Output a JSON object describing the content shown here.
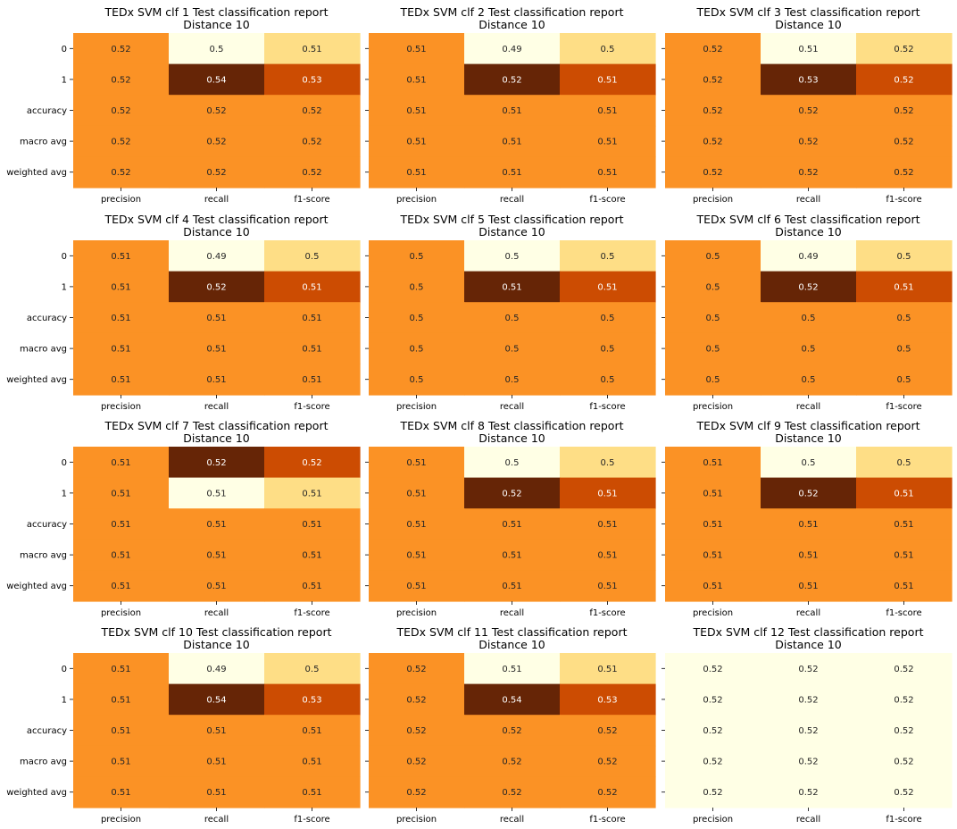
{
  "chart_data": [
    {
      "type": "heatmap",
      "title": "TEDx SVM clf 1 Test classification report",
      "subtitle": "Distance 10",
      "rows": [
        "0",
        "1",
        "accuracy",
        "macro avg",
        "weighted avg"
      ],
      "columns": [
        "precision",
        "recall",
        "f1-score"
      ],
      "values": [
        [
          0.52,
          0.5,
          0.51
        ],
        [
          0.52,
          0.54,
          0.53
        ],
        [
          0.52,
          0.52,
          0.52
        ],
        [
          0.52,
          0.52,
          0.52
        ],
        [
          0.52,
          0.52,
          0.52
        ]
      ],
      "colors": [
        [
          "#fb9225",
          "#ffffe5",
          "#fede86"
        ],
        [
          "#fb9225",
          "#662506",
          "#cc4c02"
        ],
        [
          "#fb9225",
          "#fb9225",
          "#fb9225"
        ],
        [
          "#fb9225",
          "#fb9225",
          "#fb9225"
        ],
        [
          "#fb9225",
          "#fb9225",
          "#fb9225"
        ]
      ]
    },
    {
      "type": "heatmap",
      "title": "TEDx SVM clf 2 Test classification report",
      "subtitle": "Distance 10",
      "rows": [
        "0",
        "1",
        "accuracy",
        "macro avg",
        "weighted avg"
      ],
      "columns": [
        "precision",
        "recall",
        "f1-score"
      ],
      "values": [
        [
          0.51,
          0.49,
          0.5
        ],
        [
          0.51,
          0.52,
          0.51
        ],
        [
          0.51,
          0.51,
          0.51
        ],
        [
          0.51,
          0.51,
          0.51
        ],
        [
          0.51,
          0.51,
          0.51
        ]
      ],
      "colors": [
        [
          "#fb9225",
          "#ffffe5",
          "#fede86"
        ],
        [
          "#fb9225",
          "#662506",
          "#cc4c02"
        ],
        [
          "#fb9225",
          "#fb9225",
          "#fb9225"
        ],
        [
          "#fb9225",
          "#fb9225",
          "#fb9225"
        ],
        [
          "#fb9225",
          "#fb9225",
          "#fb9225"
        ]
      ]
    },
    {
      "type": "heatmap",
      "title": "TEDx SVM clf 3 Test classification report",
      "subtitle": "Distance 10",
      "rows": [
        "0",
        "1",
        "accuracy",
        "macro avg",
        "weighted avg"
      ],
      "columns": [
        "precision",
        "recall",
        "f1-score"
      ],
      "values": [
        [
          0.52,
          0.51,
          0.52
        ],
        [
          0.52,
          0.53,
          0.52
        ],
        [
          0.52,
          0.52,
          0.52
        ],
        [
          0.52,
          0.52,
          0.52
        ],
        [
          0.52,
          0.52,
          0.52
        ]
      ],
      "colors": [
        [
          "#fb9225",
          "#ffffe5",
          "#fede86"
        ],
        [
          "#fb9225",
          "#662506",
          "#cc4c02"
        ],
        [
          "#fb9225",
          "#fb9225",
          "#fb9225"
        ],
        [
          "#fb9225",
          "#fb9225",
          "#fb9225"
        ],
        [
          "#fb9225",
          "#fb9225",
          "#fb9225"
        ]
      ]
    },
    {
      "type": "heatmap",
      "title": "TEDx SVM clf 4 Test classification report",
      "subtitle": "Distance 10",
      "rows": [
        "0",
        "1",
        "accuracy",
        "macro avg",
        "weighted avg"
      ],
      "columns": [
        "precision",
        "recall",
        "f1-score"
      ],
      "values": [
        [
          0.51,
          0.49,
          0.5
        ],
        [
          0.51,
          0.52,
          0.51
        ],
        [
          0.51,
          0.51,
          0.51
        ],
        [
          0.51,
          0.51,
          0.51
        ],
        [
          0.51,
          0.51,
          0.51
        ]
      ],
      "colors": [
        [
          "#fb9225",
          "#ffffe5",
          "#fede86"
        ],
        [
          "#fb9225",
          "#662506",
          "#cc4c02"
        ],
        [
          "#fb9225",
          "#fb9225",
          "#fb9225"
        ],
        [
          "#fb9225",
          "#fb9225",
          "#fb9225"
        ],
        [
          "#fb9225",
          "#fb9225",
          "#fb9225"
        ]
      ]
    },
    {
      "type": "heatmap",
      "title": "TEDx SVM clf 5 Test classification report",
      "subtitle": "Distance 10",
      "rows": [
        "0",
        "1",
        "accuracy",
        "macro avg",
        "weighted avg"
      ],
      "columns": [
        "precision",
        "recall",
        "f1-score"
      ],
      "values": [
        [
          0.5,
          0.5,
          0.5
        ],
        [
          0.5,
          0.51,
          0.51
        ],
        [
          0.5,
          0.5,
          0.5
        ],
        [
          0.5,
          0.5,
          0.5
        ],
        [
          0.5,
          0.5,
          0.5
        ]
      ],
      "colors": [
        [
          "#fb9225",
          "#ffffe5",
          "#fede86"
        ],
        [
          "#fb9225",
          "#662506",
          "#cc4c02"
        ],
        [
          "#fb9225",
          "#fb9225",
          "#fb9225"
        ],
        [
          "#fb9225",
          "#fb9225",
          "#fb9225"
        ],
        [
          "#fb9225",
          "#fb9225",
          "#fb9225"
        ]
      ]
    },
    {
      "type": "heatmap",
      "title": "TEDx SVM clf 6 Test classification report",
      "subtitle": "Distance 10",
      "rows": [
        "0",
        "1",
        "accuracy",
        "macro avg",
        "weighted avg"
      ],
      "columns": [
        "precision",
        "recall",
        "f1-score"
      ],
      "values": [
        [
          0.5,
          0.49,
          0.5
        ],
        [
          0.5,
          0.52,
          0.51
        ],
        [
          0.5,
          0.5,
          0.5
        ],
        [
          0.5,
          0.5,
          0.5
        ],
        [
          0.5,
          0.5,
          0.5
        ]
      ],
      "colors": [
        [
          "#fb9225",
          "#ffffe5",
          "#fede86"
        ],
        [
          "#fb9225",
          "#662506",
          "#cc4c02"
        ],
        [
          "#fb9225",
          "#fb9225",
          "#fb9225"
        ],
        [
          "#fb9225",
          "#fb9225",
          "#fb9225"
        ],
        [
          "#fb9225",
          "#fb9225",
          "#fb9225"
        ]
      ]
    },
    {
      "type": "heatmap",
      "title": "TEDx SVM clf 7 Test classification report",
      "subtitle": "Distance 10",
      "rows": [
        "0",
        "1",
        "accuracy",
        "macro avg",
        "weighted avg"
      ],
      "columns": [
        "precision",
        "recall",
        "f1-score"
      ],
      "values": [
        [
          0.51,
          0.52,
          0.52
        ],
        [
          0.51,
          0.51,
          0.51
        ],
        [
          0.51,
          0.51,
          0.51
        ],
        [
          0.51,
          0.51,
          0.51
        ],
        [
          0.51,
          0.51,
          0.51
        ]
      ],
      "colors": [
        [
          "#fb9225",
          "#662506",
          "#cc4c02"
        ],
        [
          "#fb9225",
          "#ffffe5",
          "#fede86"
        ],
        [
          "#fb9225",
          "#fb9225",
          "#fb9225"
        ],
        [
          "#fb9225",
          "#fb9225",
          "#fb9225"
        ],
        [
          "#fb9225",
          "#fb9225",
          "#fb9225"
        ]
      ]
    },
    {
      "type": "heatmap",
      "title": "TEDx SVM clf 8 Test classification report",
      "subtitle": "Distance 10",
      "rows": [
        "0",
        "1",
        "accuracy",
        "macro avg",
        "weighted avg"
      ],
      "columns": [
        "precision",
        "recall",
        "f1-score"
      ],
      "values": [
        [
          0.51,
          0.5,
          0.5
        ],
        [
          0.51,
          0.52,
          0.51
        ],
        [
          0.51,
          0.51,
          0.51
        ],
        [
          0.51,
          0.51,
          0.51
        ],
        [
          0.51,
          0.51,
          0.51
        ]
      ],
      "colors": [
        [
          "#fb9225",
          "#ffffe5",
          "#fede86"
        ],
        [
          "#fb9225",
          "#662506",
          "#cc4c02"
        ],
        [
          "#fb9225",
          "#fb9225",
          "#fb9225"
        ],
        [
          "#fb9225",
          "#fb9225",
          "#fb9225"
        ],
        [
          "#fb9225",
          "#fb9225",
          "#fb9225"
        ]
      ]
    },
    {
      "type": "heatmap",
      "title": "TEDx SVM clf 9 Test classification report",
      "subtitle": "Distance 10",
      "rows": [
        "0",
        "1",
        "accuracy",
        "macro avg",
        "weighted avg"
      ],
      "columns": [
        "precision",
        "recall",
        "f1-score"
      ],
      "values": [
        [
          0.51,
          0.5,
          0.5
        ],
        [
          0.51,
          0.52,
          0.51
        ],
        [
          0.51,
          0.51,
          0.51
        ],
        [
          0.51,
          0.51,
          0.51
        ],
        [
          0.51,
          0.51,
          0.51
        ]
      ],
      "colors": [
        [
          "#fb9225",
          "#ffffe5",
          "#fede86"
        ],
        [
          "#fb9225",
          "#662506",
          "#cc4c02"
        ],
        [
          "#fb9225",
          "#fb9225",
          "#fb9225"
        ],
        [
          "#fb9225",
          "#fb9225",
          "#fb9225"
        ],
        [
          "#fb9225",
          "#fb9225",
          "#fb9225"
        ]
      ]
    },
    {
      "type": "heatmap",
      "title": "TEDx SVM clf 10 Test classification report",
      "subtitle": "Distance 10",
      "rows": [
        "0",
        "1",
        "accuracy",
        "macro avg",
        "weighted avg"
      ],
      "columns": [
        "precision",
        "recall",
        "f1-score"
      ],
      "values": [
        [
          0.51,
          0.49,
          0.5
        ],
        [
          0.51,
          0.54,
          0.53
        ],
        [
          0.51,
          0.51,
          0.51
        ],
        [
          0.51,
          0.51,
          0.51
        ],
        [
          0.51,
          0.51,
          0.51
        ]
      ],
      "colors": [
        [
          "#fb9225",
          "#ffffe5",
          "#fede86"
        ],
        [
          "#fb9225",
          "#662506",
          "#cc4c02"
        ],
        [
          "#fb9225",
          "#fb9225",
          "#fb9225"
        ],
        [
          "#fb9225",
          "#fb9225",
          "#fb9225"
        ],
        [
          "#fb9225",
          "#fb9225",
          "#fb9225"
        ]
      ]
    },
    {
      "type": "heatmap",
      "title": "TEDx SVM clf 11 Test classification report",
      "subtitle": "Distance 10",
      "rows": [
        "0",
        "1",
        "accuracy",
        "macro avg",
        "weighted avg"
      ],
      "columns": [
        "precision",
        "recall",
        "f1-score"
      ],
      "values": [
        [
          0.52,
          0.51,
          0.51
        ],
        [
          0.52,
          0.54,
          0.53
        ],
        [
          0.52,
          0.52,
          0.52
        ],
        [
          0.52,
          0.52,
          0.52
        ],
        [
          0.52,
          0.52,
          0.52
        ]
      ],
      "colors": [
        [
          "#fb9225",
          "#ffffe5",
          "#fede86"
        ],
        [
          "#fb9225",
          "#662506",
          "#cc4c02"
        ],
        [
          "#fb9225",
          "#fb9225",
          "#fb9225"
        ],
        [
          "#fb9225",
          "#fb9225",
          "#fb9225"
        ],
        [
          "#fb9225",
          "#fb9225",
          "#fb9225"
        ]
      ]
    },
    {
      "type": "heatmap",
      "title": "TEDx SVM clf 12 Test classification report",
      "subtitle": "Distance 10",
      "rows": [
        "0",
        "1",
        "accuracy",
        "macro avg",
        "weighted avg"
      ],
      "columns": [
        "precision",
        "recall",
        "f1-score"
      ],
      "values": [
        [
          0.52,
          0.52,
          0.52
        ],
        [
          0.52,
          0.52,
          0.52
        ],
        [
          0.52,
          0.52,
          0.52
        ],
        [
          0.52,
          0.52,
          0.52
        ],
        [
          0.52,
          0.52,
          0.52
        ]
      ],
      "colors": [
        [
          "#ffffe5",
          "#ffffe5",
          "#ffffe5"
        ],
        [
          "#ffffe5",
          "#ffffe5",
          "#ffffe5"
        ],
        [
          "#ffffe5",
          "#ffffe5",
          "#ffffe5"
        ],
        [
          "#ffffe5",
          "#ffffe5",
          "#ffffe5"
        ],
        [
          "#ffffe5",
          "#ffffe5",
          "#ffffe5"
        ]
      ]
    }
  ]
}
